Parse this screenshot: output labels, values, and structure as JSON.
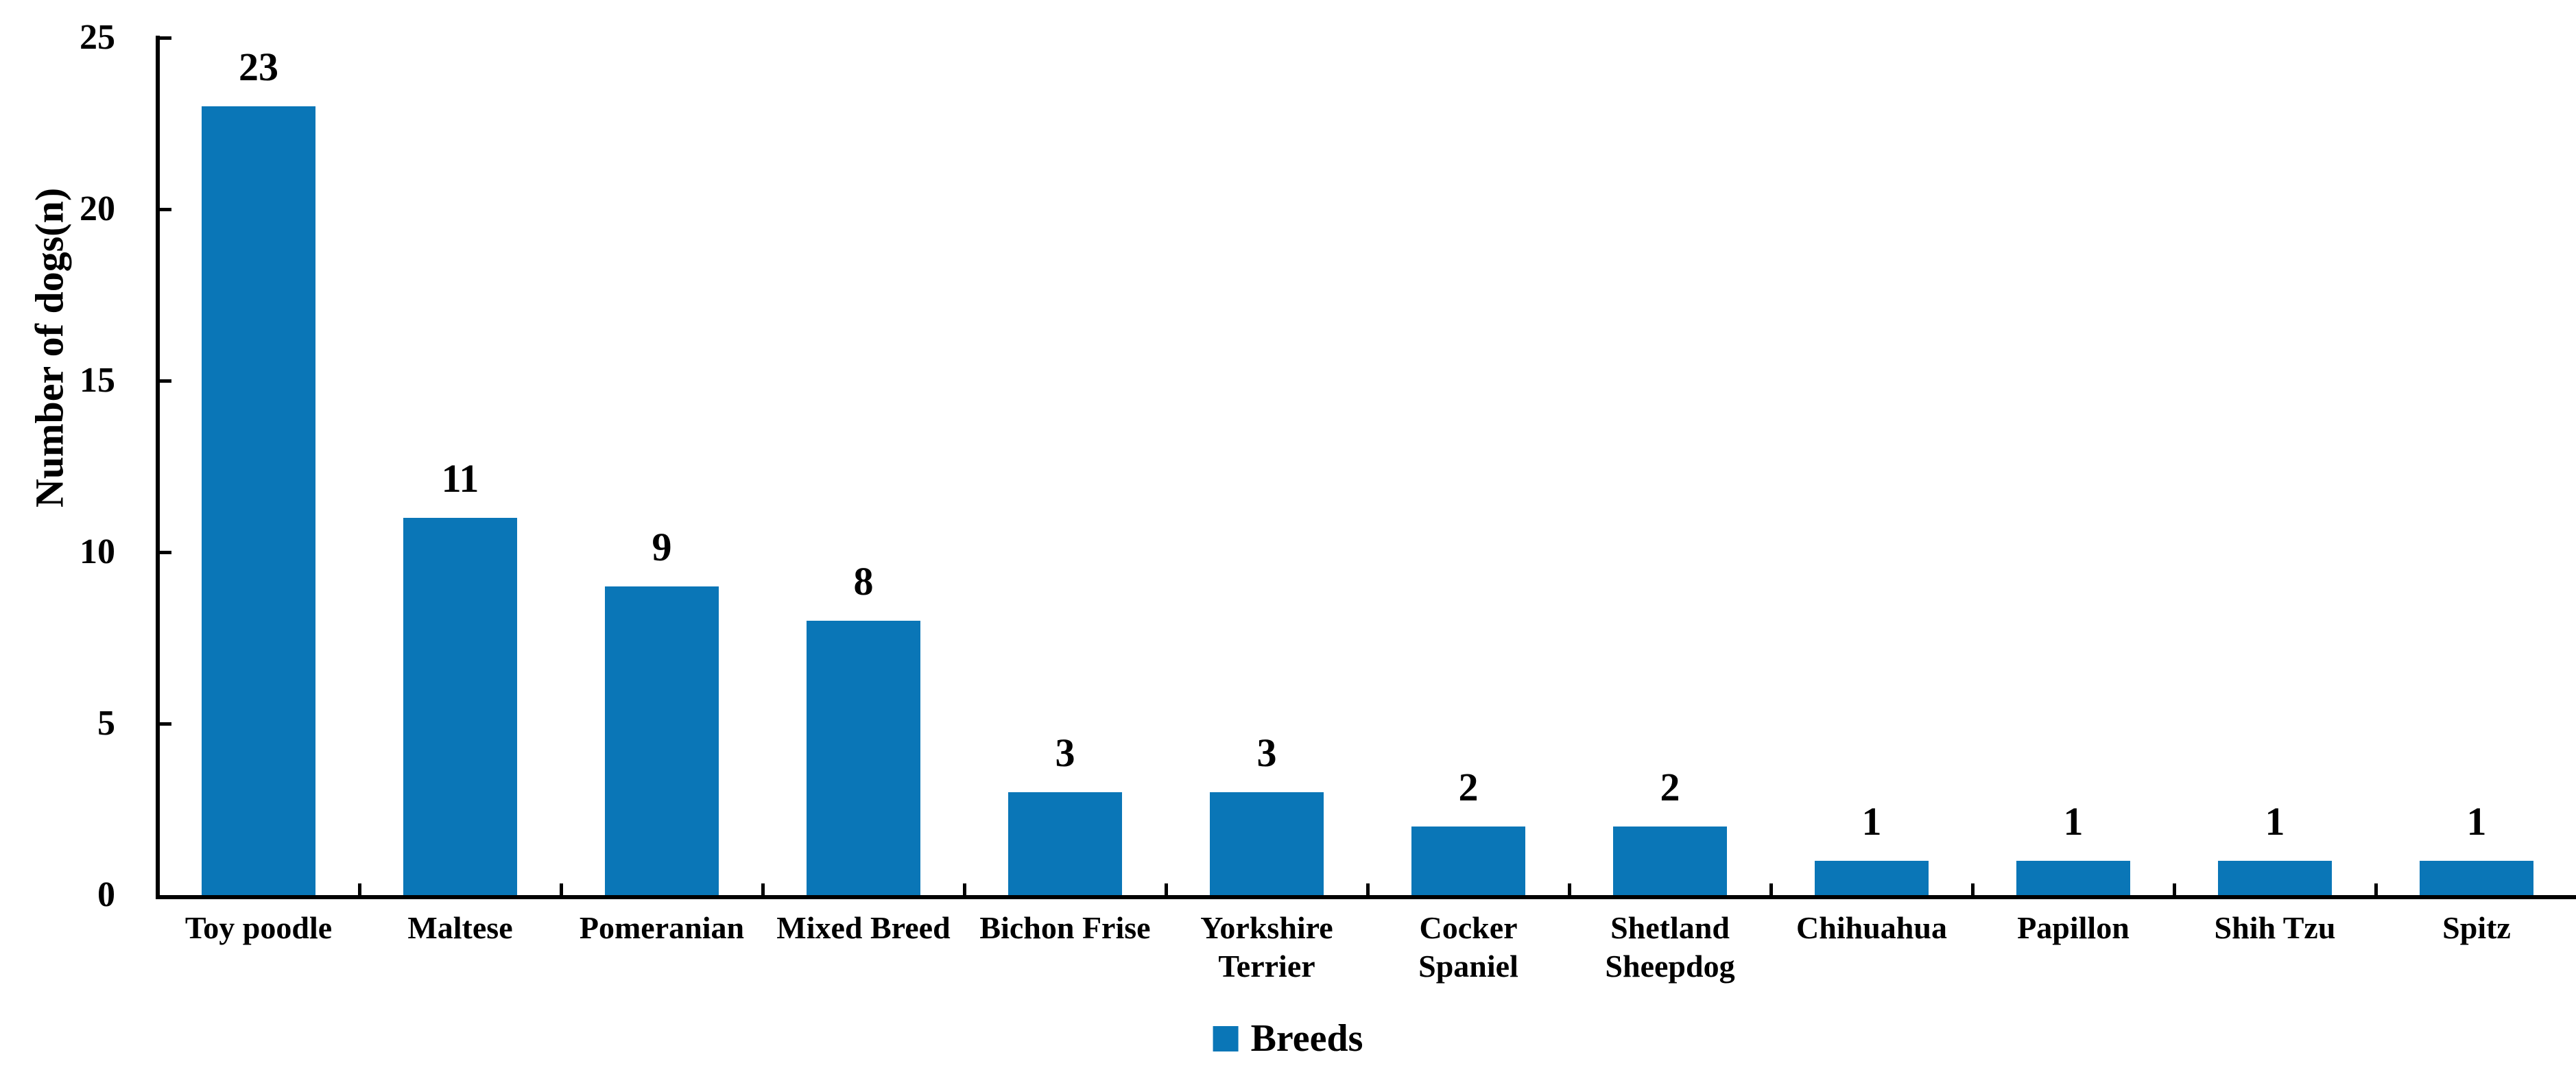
{
  "chart_data": {
    "type": "bar",
    "title": "",
    "categories": [
      "Toy poodle",
      "Maltese",
      "Pomeranian",
      "Mixed Breed",
      "Bichon Frise",
      "Yorkshire Terrier",
      "Cocker Spaniel",
      "Shetland Sheepdog",
      "Chihuahua",
      "Papillon",
      "Shih Tzu",
      "Spitz"
    ],
    "values": [
      23,
      11,
      9,
      8,
      3,
      3,
      2,
      2,
      1,
      1,
      1,
      1
    ],
    "value_labels": [
      "23",
      "11",
      "9",
      "8",
      "3",
      "3",
      "2",
      "2",
      "1",
      "1",
      "1",
      "1"
    ],
    "xlabel": "",
    "ylabel": "Number of dogs(n)",
    "ylim": [
      0,
      25
    ],
    "yticks": [
      0,
      5,
      10,
      15,
      20,
      25
    ],
    "grid": false,
    "legend": {
      "label": "Breeds",
      "position": "bottom-center"
    }
  },
  "colors": {
    "bar": "#0A76B7",
    "axis": "#000000",
    "text": "#000000",
    "background": "#ffffff"
  }
}
